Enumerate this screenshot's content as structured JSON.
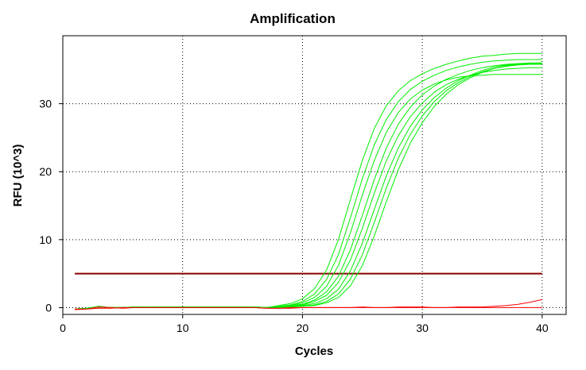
{
  "chart_data": {
    "type": "line",
    "title": "Amplification",
    "xlabel": "Cycles",
    "ylabel": "RFU (10^3)",
    "xlim": [
      0,
      42
    ],
    "ylim": [
      -1,
      40
    ],
    "xticks": [
      0,
      10,
      20,
      30,
      40
    ],
    "yticks": [
      0,
      10,
      20,
      30
    ],
    "grid": true,
    "legend": "none",
    "threshold": {
      "value": 5.0,
      "color": "#8b0000"
    },
    "x": [
      1,
      2,
      3,
      4,
      5,
      6,
      7,
      8,
      9,
      10,
      11,
      12,
      13,
      14,
      15,
      16,
      17,
      18,
      19,
      20,
      21,
      22,
      23,
      24,
      25,
      26,
      27,
      28,
      29,
      30,
      31,
      32,
      33,
      34,
      35,
      36,
      37,
      38,
      39,
      40
    ],
    "series": [
      {
        "color": "#00ee00",
        "values": [
          -0.2,
          -0.1,
          0.2,
          0.0,
          0.0,
          0.1,
          0.1,
          0.1,
          0.1,
          0.1,
          0.1,
          0.1,
          0.1,
          0.1,
          0.1,
          0.1,
          0.0,
          0.3,
          0.6,
          1.3,
          2.8,
          5.5,
          10.0,
          15.9,
          21.7,
          26.4,
          29.7,
          31.9,
          33.4,
          34.4,
          35.2,
          35.8,
          36.3,
          36.7,
          37.0,
          37.1,
          37.3,
          37.4,
          37.4,
          37.4
        ]
      },
      {
        "color": "#00ee00",
        "values": [
          -0.2,
          -0.1,
          0.1,
          0.0,
          0.0,
          0.1,
          0.1,
          0.1,
          0.1,
          0.1,
          0.1,
          0.1,
          0.1,
          0.1,
          0.1,
          0.1,
          0.0,
          0.2,
          0.4,
          0.9,
          2.0,
          4.1,
          7.8,
          13.2,
          19.0,
          24.0,
          27.7,
          30.3,
          32.1,
          33.3,
          34.2,
          34.9,
          35.4,
          35.8,
          36.1,
          36.3,
          36.4,
          36.5,
          36.5,
          36.5
        ]
      },
      {
        "color": "#00ee00",
        "values": [
          -0.2,
          -0.1,
          0.1,
          0.0,
          0.0,
          0.1,
          0.1,
          0.1,
          0.1,
          0.1,
          0.1,
          0.1,
          0.1,
          0.1,
          0.1,
          0.1,
          0.0,
          0.2,
          0.3,
          0.7,
          1.5,
          3.1,
          6.2,
          11.0,
          16.6,
          21.7,
          25.8,
          28.7,
          30.7,
          32.0,
          32.9,
          33.5,
          33.9,
          34.1,
          34.2,
          34.3,
          34.3,
          34.3,
          34.3,
          34.3
        ]
      },
      {
        "color": "#00ee00",
        "values": [
          -0.2,
          -0.1,
          0.1,
          0.0,
          0.0,
          0.1,
          0.1,
          0.1,
          0.1,
          0.1,
          0.1,
          0.1,
          0.1,
          0.1,
          0.1,
          0.1,
          0.0,
          0.1,
          0.3,
          0.5,
          1.1,
          2.3,
          4.6,
          8.5,
          13.6,
          18.9,
          23.5,
          27.0,
          29.5,
          31.3,
          32.6,
          33.6,
          34.3,
          34.9,
          35.3,
          35.6,
          35.8,
          35.9,
          35.9,
          35.9
        ]
      },
      {
        "color": "#00ee00",
        "values": [
          -0.2,
          -0.1,
          0.1,
          0.0,
          0.0,
          0.1,
          0.1,
          0.1,
          0.1,
          0.1,
          0.1,
          0.1,
          0.1,
          0.1,
          0.1,
          0.1,
          0.0,
          0.1,
          0.2,
          0.4,
          0.9,
          1.8,
          3.7,
          7.0,
          11.7,
          16.9,
          21.6,
          25.3,
          28.1,
          30.1,
          31.7,
          32.8,
          33.6,
          34.2,
          34.6,
          34.9,
          35.1,
          35.2,
          35.3,
          35.3
        ]
      },
      {
        "color": "#00ee00",
        "values": [
          -0.2,
          -0.1,
          0.1,
          0.0,
          0.0,
          0.1,
          0.1,
          0.1,
          0.1,
          0.1,
          0.1,
          0.1,
          0.1,
          0.1,
          0.1,
          0.1,
          0.0,
          0.1,
          0.2,
          0.3,
          0.6,
          1.3,
          2.7,
          5.4,
          9.5,
          14.5,
          19.4,
          23.5,
          26.7,
          29.1,
          30.9,
          32.3,
          33.4,
          34.2,
          34.9,
          35.4,
          35.7,
          35.9,
          36.0,
          36.0
        ]
      },
      {
        "color": "#00ee00",
        "values": [
          -0.2,
          -0.1,
          0.1,
          0.0,
          0.0,
          0.1,
          0.1,
          0.1,
          0.1,
          0.1,
          0.1,
          0.1,
          0.1,
          0.1,
          0.1,
          0.1,
          0.0,
          0.0,
          0.1,
          0.2,
          0.4,
          0.9,
          2.0,
          4.2,
          7.8,
          12.6,
          17.6,
          22.0,
          25.5,
          28.2,
          30.3,
          31.9,
          33.1,
          34.0,
          34.7,
          35.2,
          35.5,
          35.7,
          35.8,
          35.8
        ]
      },
      {
        "color": "#00ee00",
        "values": [
          -0.2,
          -0.1,
          0.1,
          0.0,
          0.0,
          0.1,
          0.1,
          0.1,
          0.1,
          0.1,
          0.1,
          0.1,
          0.1,
          0.1,
          0.1,
          0.1,
          0.0,
          0.0,
          0.1,
          0.2,
          0.3,
          0.7,
          1.5,
          3.2,
          6.2,
          10.6,
          15.6,
          20.3,
          24.2,
          27.2,
          29.6,
          31.4,
          32.8,
          33.8,
          34.6,
          35.2,
          35.6,
          35.8,
          35.9,
          35.9
        ]
      },
      {
        "color": "#ff0000",
        "values": [
          -0.3,
          -0.2,
          0.1,
          0.0,
          -0.1,
          0.0,
          0.0,
          0.0,
          0.0,
          0.0,
          0.0,
          0.0,
          0.0,
          0.0,
          0.0,
          0.0,
          -0.1,
          -0.1,
          0.0,
          0.0,
          0.0,
          0.0,
          0.0,
          0.0,
          0.1,
          0.0,
          0.0,
          0.1,
          0.1,
          0.1,
          0.0,
          0.0,
          0.1,
          0.1,
          0.1,
          0.2,
          0.3,
          0.5,
          0.8,
          1.2
        ]
      },
      {
        "color": "#ff0000",
        "values": [
          -0.2,
          -0.2,
          -0.1,
          -0.1,
          0.0,
          0.0,
          0.0,
          0.0,
          0.0,
          0.0,
          0.0,
          0.0,
          0.0,
          0.0,
          0.0,
          0.0,
          -0.1,
          -0.1,
          -0.1,
          0.0,
          0.0,
          0.0,
          0.0,
          0.0,
          0.0,
          0.0,
          0.0,
          0.0,
          0.0,
          0.0,
          0.0,
          0.0,
          0.0,
          0.0,
          0.0,
          0.0,
          0.0,
          0.0,
          0.0,
          0.0
        ]
      }
    ]
  }
}
